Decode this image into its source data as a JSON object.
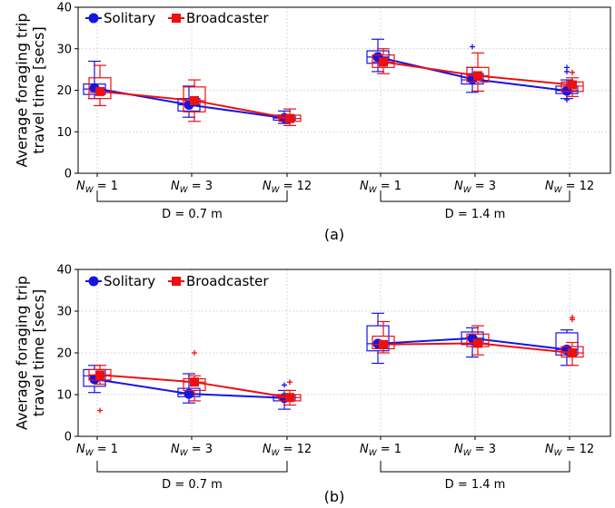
{
  "colors": {
    "solitary": "#1414e6",
    "broadcaster": "#ee0f0f"
  },
  "chart_data": [
    {
      "type": "box",
      "caption": "(a)",
      "ylabel": [
        "Average foraging trip",
        "travel time [secs]"
      ],
      "ylim": [
        0,
        40
      ],
      "yticks": [
        0,
        10,
        20,
        30,
        40
      ],
      "grid": true,
      "legend": {
        "placement": "top-left",
        "entries": [
          "Solitary",
          "Broadcaster"
        ]
      },
      "categories": [
        {
          "base": "N",
          "sub": "W",
          "rest": " = 1"
        },
        {
          "base": "N",
          "sub": "W",
          "rest": " = 3"
        },
        {
          "base": "N",
          "sub": "W",
          "rest": " = 12"
        },
        {
          "base": "N",
          "sub": "W",
          "rest": " = 1"
        },
        {
          "base": "N",
          "sub": "W",
          "rest": " = 3"
        },
        {
          "base": "N",
          "sub": "W",
          "rest": " = 12"
        }
      ],
      "groups": [
        {
          "label": "D = 0.7 m",
          "from": 0,
          "to": 2
        },
        {
          "label": "D = 1.4 m",
          "from": 3,
          "to": 5
        }
      ],
      "series": [
        {
          "name": "Solitary",
          "means": [
            20.5,
            16.5,
            13.3,
            28.0,
            22.7,
            19.9
          ],
          "boxes": [
            {
              "whislo": 18.0,
              "q1": 19.0,
              "med": 20.3,
              "q3": 21.5,
              "whishi": 27.0,
              "fliers": []
            },
            {
              "whislo": 13.5,
              "q1": 15.0,
              "med": 16.5,
              "q3": 18.0,
              "whishi": 21.0,
              "fliers": []
            },
            {
              "whislo": 12.0,
              "q1": 12.8,
              "med": 13.3,
              "q3": 14.0,
              "whishi": 15.0,
              "fliers": []
            },
            {
              "whislo": 24.5,
              "q1": 26.5,
              "med": 28.0,
              "q3": 29.5,
              "whishi": 32.3,
              "fliers": []
            },
            {
              "whislo": 19.5,
              "q1": 21.5,
              "med": 22.5,
              "q3": 24.0,
              "whishi": 25.5,
              "fliers": [
                30.5
              ]
            },
            {
              "whislo": 18.0,
              "q1": 19.2,
              "med": 19.9,
              "q3": 21.0,
              "whishi": 22.5,
              "fliers": [
                24.5,
                25.5,
                17.7
              ]
            }
          ]
        },
        {
          "name": "Broadcaster",
          "means": [
            19.7,
            17.5,
            13.2,
            26.8,
            23.5,
            21.3
          ],
          "boxes": [
            {
              "whislo": 16.3,
              "q1": 18.0,
              "med": 19.5,
              "q3": 23.0,
              "whishi": 26.0,
              "fliers": []
            },
            {
              "whislo": 12.5,
              "q1": 14.8,
              "med": 17.5,
              "q3": 20.8,
              "whishi": 22.5,
              "fliers": []
            },
            {
              "whislo": 11.5,
              "q1": 12.5,
              "med": 13.2,
              "q3": 14.0,
              "whishi": 15.5,
              "fliers": []
            },
            {
              "whislo": 24.0,
              "q1": 25.5,
              "med": 26.8,
              "q3": 28.5,
              "whishi": 30.0,
              "fliers": []
            },
            {
              "whislo": 19.8,
              "q1": 22.0,
              "med": 23.5,
              "q3": 25.5,
              "whishi": 29.0,
              "fliers": []
            },
            {
              "whislo": 18.5,
              "q1": 19.7,
              "med": 21.0,
              "q3": 22.0,
              "whishi": 23.0,
              "fliers": [
                24.3
              ]
            }
          ]
        }
      ]
    },
    {
      "type": "box",
      "caption": "(b)",
      "ylabel": [
        "Average foraging trip",
        "travel time [secs]"
      ],
      "ylim": [
        0,
        40
      ],
      "yticks": [
        0,
        10,
        20,
        30,
        40
      ],
      "grid": true,
      "legend": {
        "placement": "top-left",
        "entries": [
          "Solitary",
          "Broadcaster"
        ]
      },
      "categories": [
        {
          "base": "N",
          "sub": "W",
          "rest": " = 1"
        },
        {
          "base": "N",
          "sub": "W",
          "rest": " = 3"
        },
        {
          "base": "N",
          "sub": "W",
          "rest": " = 12"
        },
        {
          "base": "N",
          "sub": "W",
          "rest": " = 1"
        },
        {
          "base": "N",
          "sub": "W",
          "rest": " = 3"
        },
        {
          "base": "N",
          "sub": "W",
          "rest": " = 12"
        }
      ],
      "groups": [
        {
          "label": "D = 0.7 m",
          "from": 0,
          "to": 2
        },
        {
          "label": "D = 1.4 m",
          "from": 3,
          "to": 5
        }
      ],
      "series": [
        {
          "name": "Solitary",
          "means": [
            13.7,
            10.2,
            9.2,
            22.2,
            23.5,
            20.8
          ],
          "boxes": [
            {
              "whislo": 10.5,
              "q1": 12.0,
              "med": 14.5,
              "q3": 16.0,
              "whishi": 17.0,
              "fliers": []
            },
            {
              "whislo": 8.0,
              "q1": 9.5,
              "med": 10.2,
              "q3": 11.5,
              "whishi": 15.0,
              "fliers": []
            },
            {
              "whislo": 6.5,
              "q1": 8.5,
              "med": 9.2,
              "q3": 10.0,
              "whishi": 11.0,
              "fliers": [
                12.3
              ]
            },
            {
              "whislo": 17.5,
              "q1": 20.5,
              "med": 22.2,
              "q3": 26.5,
              "whishi": 29.5,
              "fliers": []
            },
            {
              "whislo": 19.0,
              "q1": 22.0,
              "med": 23.5,
              "q3": 25.0,
              "whishi": 26.0,
              "fliers": []
            },
            {
              "whislo": 17.0,
              "q1": 19.5,
              "med": 20.8,
              "q3": 24.8,
              "whishi": 25.5,
              "fliers": []
            }
          ]
        },
        {
          "name": "Broadcaster",
          "means": [
            14.7,
            13.0,
            9.3,
            22.0,
            22.3,
            20.0
          ],
          "boxes": [
            {
              "whislo": 12.5,
              "q1": 13.5,
              "med": 14.7,
              "q3": 16.0,
              "whishi": 17.0,
              "fliers": [
                6.2
              ]
            },
            {
              "whislo": 8.5,
              "q1": 11.0,
              "med": 13.0,
              "q3": 13.8,
              "whishi": 14.5,
              "fliers": [
                20.0
              ]
            },
            {
              "whislo": 7.5,
              "q1": 8.5,
              "med": 9.3,
              "q3": 10.0,
              "whishi": 11.0,
              "fliers": [
                13.0
              ]
            },
            {
              "whislo": 20.0,
              "q1": 21.0,
              "med": 22.0,
              "q3": 24.0,
              "whishi": 27.5,
              "fliers": []
            },
            {
              "whislo": 19.5,
              "q1": 21.5,
              "med": 22.3,
              "q3": 24.5,
              "whishi": 26.5,
              "fliers": []
            },
            {
              "whislo": 17.0,
              "q1": 19.0,
              "med": 20.0,
              "q3": 21.5,
              "whishi": 22.5,
              "fliers": [
                28.0,
                28.5
              ]
            }
          ]
        }
      ]
    }
  ]
}
